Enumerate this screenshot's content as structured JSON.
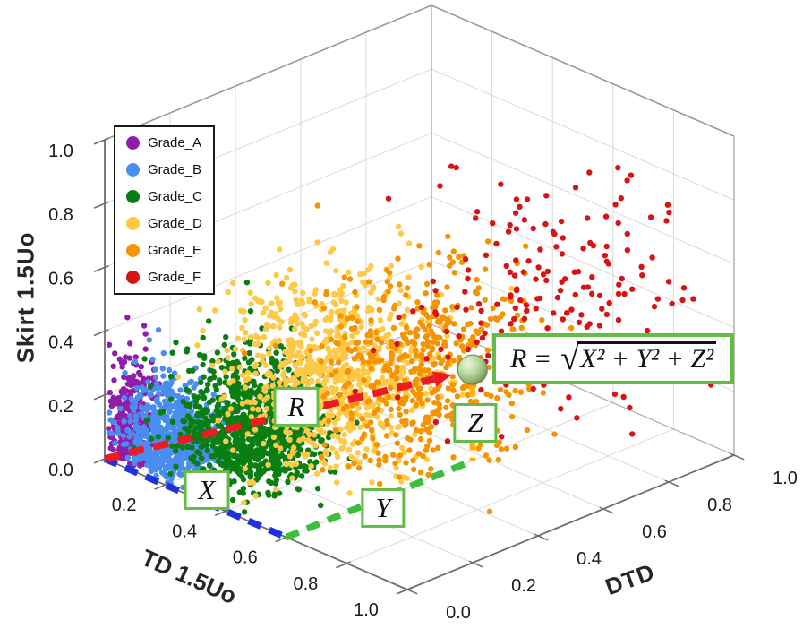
{
  "chart_data": {
    "type": "scatter3d",
    "title": "",
    "axes": {
      "x": {
        "label": "TD 1.5Uo",
        "range": [
          0,
          1
        ],
        "ticks": [
          "0.2",
          "0.4",
          "0.6",
          "0.8",
          "1.0"
        ]
      },
      "y": {
        "label": "DTD",
        "range": [
          0,
          1
        ],
        "ticks": [
          "0.0",
          "0.2",
          "0.4",
          "0.6",
          "0.8",
          "1.0"
        ]
      },
      "z": {
        "label": "Skirt 1.5Uo",
        "range": [
          0,
          1
        ],
        "ticks": [
          "0.0",
          "0.2",
          "0.4",
          "0.6",
          "0.8",
          "1.0"
        ]
      }
    },
    "grid": "on",
    "legend_position": "top-left",
    "series": [
      {
        "name": "Grade_A",
        "color": "#901CAC",
        "count": 280,
        "mean": [
          0.05,
          0.03,
          0.1
        ],
        "std": [
          0.035,
          0.025,
          0.12
        ],
        "seed": 11
      },
      {
        "name": "Grade_B",
        "color": "#4A8DF0",
        "count": 650,
        "mean": [
          0.14,
          0.07,
          0.1
        ],
        "std": [
          0.07,
          0.05,
          0.09
        ],
        "seed": 22
      },
      {
        "name": "Grade_C",
        "color": "#0B7E12",
        "count": 1000,
        "mean": [
          0.3,
          0.17,
          0.14
        ],
        "std": [
          0.09,
          0.08,
          0.11
        ],
        "seed": 33
      },
      {
        "name": "Grade_D",
        "color": "#FFC845",
        "count": 850,
        "mean": [
          0.42,
          0.3,
          0.3
        ],
        "std": [
          0.12,
          0.11,
          0.14
        ],
        "seed": 44
      },
      {
        "name": "Grade_E",
        "color": "#F59300",
        "count": 520,
        "mean": [
          0.55,
          0.46,
          0.32
        ],
        "std": [
          0.12,
          0.12,
          0.15
        ],
        "seed": 55
      },
      {
        "name": "Grade_F",
        "color": "#D81313",
        "count": 185,
        "mean": [
          0.72,
          0.7,
          0.52
        ],
        "std": [
          0.13,
          0.17,
          0.17
        ],
        "seed": 66
      }
    ],
    "annotations": {
      "vector_point": [
        0.6,
        0.57,
        0.285
      ],
      "labels": {
        "x": "X",
        "y": "Y",
        "z": "Z",
        "r": "R"
      },
      "formula": {
        "lhs": "R =",
        "sqrt": "√",
        "radicand": "X² + Y² + Z²"
      },
      "colors": {
        "x_line": "#1E32DC",
        "y_line": "#3DBE3D",
        "z_line": "#FFAE0F",
        "r_arrow": "#EA1B22",
        "box_border": "#62BC45",
        "sphere": "#A8CC8F"
      }
    }
  }
}
